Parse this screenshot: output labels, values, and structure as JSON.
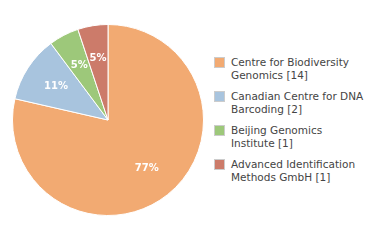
{
  "chart_data": {
    "type": "pie",
    "categories": [
      "Centre for Biodiversity\nGenomics [14]",
      "Canadian Centre for DNA\nBarcoding [2]",
      "Beijing Genomics Institute [1]",
      "Advanced Identification\nMethods GmbH [1]"
    ],
    "values": [
      77,
      11,
      5,
      5
    ],
    "value_labels": [
      "77%",
      "11%",
      "5%",
      "5%"
    ],
    "colors": [
      "#f2aa72",
      "#a8c4de",
      "#9dc87a",
      "#cc7b6a"
    ],
    "data_labels": true,
    "legend": "right"
  }
}
